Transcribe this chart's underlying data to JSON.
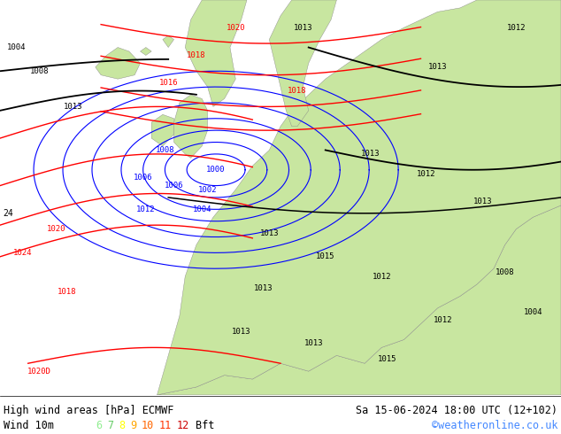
{
  "title_left": "High wind areas [hPa] ECMWF",
  "title_right": "Sa 15-06-2024 18:00 UTC (12+102)",
  "subtitle_left": "Wind 10m",
  "subtitle_right": "©weatheronline.co.uk",
  "bft_labels": [
    "6",
    "7",
    "8",
    "9",
    "10",
    "11",
    "12"
  ],
  "bft_colors": [
    "#90ee90",
    "#66cc66",
    "#ffff00",
    "#ffa500",
    "#ff6600",
    "#ff3300",
    "#cc0000"
  ],
  "bg_color": "#ffffff",
  "map_bg": "#c8e6a0",
  "ocean_color": "#b8d4e8",
  "land_color": "#c8e6a0",
  "land_edge": "#888888"
}
